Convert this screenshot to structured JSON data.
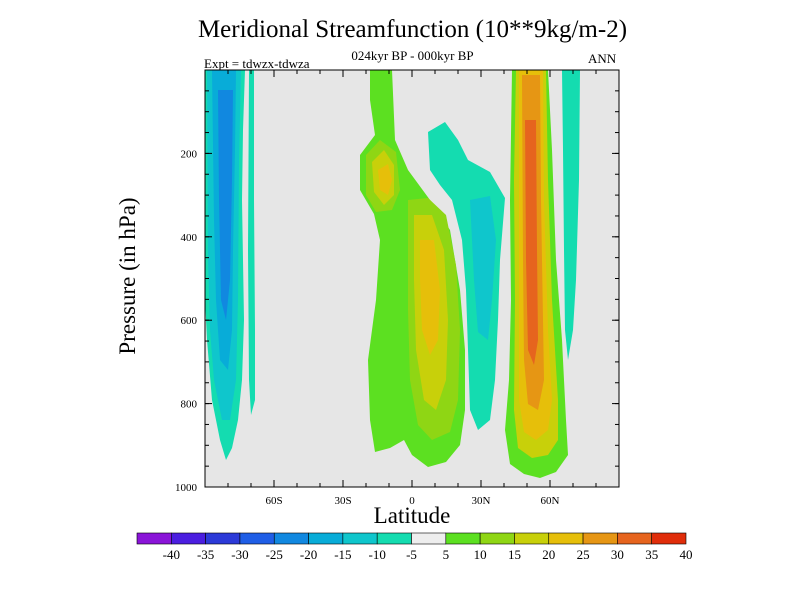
{
  "chart_data": {
    "type": "heatmap",
    "title": "Meridional Streamfunction (10**9kg/m-2)",
    "subtitle": "024kyr BP - 000kyr BP",
    "experiment": "Expt = tdwzx-tdwza",
    "season": "ANN",
    "xlabel": "Latitude",
    "ylabel": "Pressure (in hPa)",
    "x_ticks": [
      {
        "lat": -60,
        "label": "60S"
      },
      {
        "lat": -30,
        "label": "30S"
      },
      {
        "lat": 0,
        "label": "0"
      },
      {
        "lat": 30,
        "label": "30N"
      },
      {
        "lat": 60,
        "label": "60N"
      }
    ],
    "y_ticks": [
      {
        "p": 200,
        "label": "200"
      },
      {
        "p": 400,
        "label": "400"
      },
      {
        "p": 600,
        "label": "600"
      },
      {
        "p": 800,
        "label": "800"
      },
      {
        "p": 1000,
        "label": "1000"
      }
    ],
    "xlim": [
      -90,
      90
    ],
    "ylim": [
      1000,
      0
    ],
    "background_color": "#e6e6e6",
    "colorbar": {
      "labels": [
        "-40",
        "-35",
        "-30",
        "-25",
        "-20",
        "-15",
        "-10",
        "-5",
        "5",
        "10",
        "15",
        "20",
        "25",
        "30",
        "35",
        "40"
      ],
      "colors": [
        "#8a14d8",
        "#4b1ee0",
        "#2c3ad8",
        "#1f5ee6",
        "#1188e0",
        "#08acd8",
        "#0fc6cc",
        "#14dcb0",
        "#eeeeee",
        "#5ce021",
        "#8fd614",
        "#c8d00a",
        "#e6bf0a",
        "#e69614",
        "#e6641e",
        "#e02d0a"
      ]
    },
    "features": [
      {
        "sign": "negative",
        "lat_range": [
          -88,
          -70
        ],
        "p_range": [
          20,
          940
        ],
        "peak": -25,
        "desc": "southern high-latitude negative cell"
      },
      {
        "sign": "negative",
        "lat_range": [
          -70,
          -66
        ],
        "p_range": [
          20,
          830
        ],
        "peak": -10
      },
      {
        "sign": "positive",
        "lat_range": [
          -22,
          -10
        ],
        "p_range": [
          100,
          330
        ],
        "peak": 25,
        "desc": "upper-level positive cell"
      },
      {
        "sign": "positive",
        "lat_range": [
          -22,
          15
        ],
        "p_range": [
          20,
          960
        ],
        "peak": 25,
        "desc": "equatorial positive cell"
      },
      {
        "sign": "negative",
        "lat_range": [
          10,
          42
        ],
        "p_range": [
          80,
          860
        ],
        "peak": -15,
        "desc": "subtropical negative band"
      },
      {
        "sign": "positive",
        "lat_range": [
          45,
          58
        ],
        "p_range": [
          20,
          975
        ],
        "peak": 35,
        "desc": "northern mid-latitude positive cell"
      },
      {
        "sign": "negative",
        "lat_range": [
          64,
          70
        ],
        "p_range": [
          20,
          650
        ],
        "peak": -10
      }
    ]
  }
}
